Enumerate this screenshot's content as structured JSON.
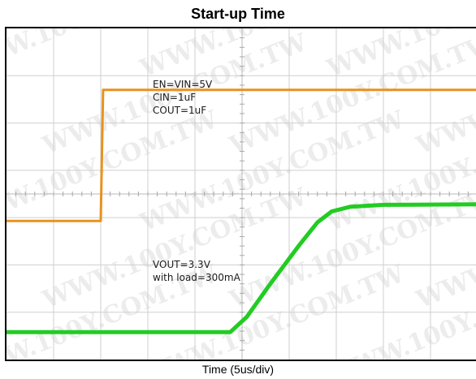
{
  "chart_data": {
    "type": "line",
    "title": "Start-up Time",
    "xlabel": "Time (5us/div)",
    "ylabel": "",
    "grid": true,
    "series": [
      {
        "name": "EN",
        "color": "#e8921e",
        "points": [
          [
            0,
            2.93
          ],
          [
            2.0,
            2.93
          ],
          [
            2.05,
            5.7
          ],
          [
            10,
            5.7
          ]
        ]
      },
      {
        "name": "VOUT",
        "color": "#22cc22",
        "points": [
          [
            0,
            0.58
          ],
          [
            4.75,
            0.58
          ],
          [
            5.1,
            0.9
          ],
          [
            5.6,
            1.6
          ],
          [
            6.2,
            2.4
          ],
          [
            6.6,
            2.9
          ],
          [
            6.9,
            3.13
          ],
          [
            7.3,
            3.23
          ],
          [
            8.0,
            3.27
          ],
          [
            10,
            3.28
          ]
        ]
      }
    ],
    "annotations": [
      {
        "lines": [
          "EN=VIN=5V",
          "CIN=1uF",
          "COUT=1uF"
        ]
      },
      {
        "lines": [
          "VOUT=3.3V",
          "with load=300mA"
        ]
      }
    ]
  },
  "watermark": "WWW.100Y.COM.TW"
}
